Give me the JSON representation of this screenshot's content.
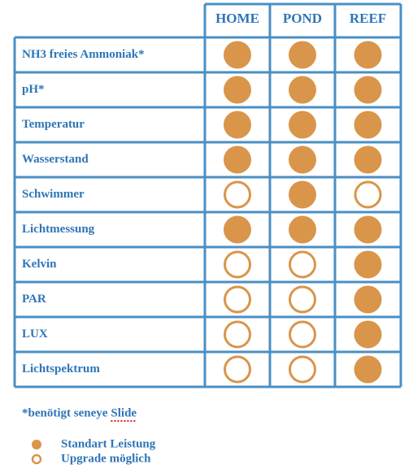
{
  "table": {
    "columns": [
      "HOME",
      "POND",
      "REEF"
    ],
    "rows": [
      {
        "label": "NH3 freies Ammoniak*",
        "cells": [
          "filled",
          "filled",
          "filled"
        ]
      },
      {
        "label": "pH*",
        "cells": [
          "filled",
          "filled",
          "filled"
        ]
      },
      {
        "label": "Temperatur",
        "cells": [
          "filled",
          "filled",
          "filled"
        ]
      },
      {
        "label": "Wasserstand",
        "cells": [
          "filled",
          "filled",
          "filled"
        ]
      },
      {
        "label": "Schwimmer",
        "cells": [
          "open",
          "filled",
          "open"
        ]
      },
      {
        "label": "Lichtmessung",
        "cells": [
          "filled",
          "filled",
          "filled"
        ]
      },
      {
        "label": "Kelvin",
        "cells": [
          "open",
          "open",
          "filled"
        ]
      },
      {
        "label": "PAR",
        "cells": [
          "open",
          "open",
          "filled"
        ]
      },
      {
        "label": "LUX",
        "cells": [
          "open",
          "open",
          "filled"
        ]
      },
      {
        "label": "Lichtspektrum",
        "cells": [
          "open",
          "open",
          "filled"
        ]
      }
    ]
  },
  "footnote": {
    "text": "*benötigt seneye",
    "link": "Slide"
  },
  "legend": [
    {
      "style": "filled",
      "label": "Standart Leistung"
    },
    {
      "style": "open",
      "label": "Upgrade möglich"
    }
  ]
}
